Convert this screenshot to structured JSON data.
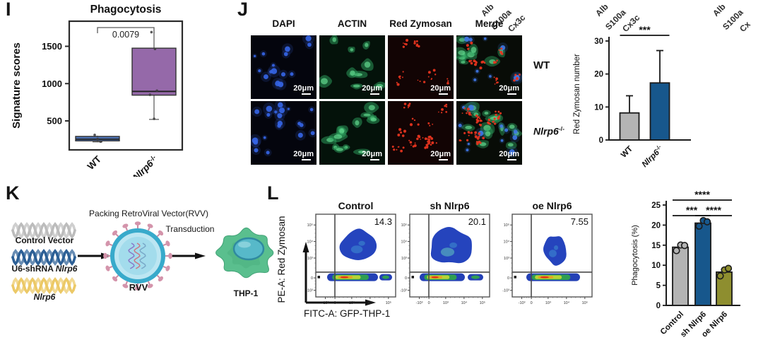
{
  "figure": {
    "panel_labels": {
      "I": "I",
      "J": "J",
      "K": "K",
      "L": "L"
    }
  },
  "top_cut_labels": {
    "clusters": [
      [
        "Alb",
        "S100a",
        "Cx3c"
      ],
      [
        "Alb",
        "S100a",
        "Cx3c"
      ],
      [
        "Alb",
        "S100a",
        "Cx"
      ]
    ]
  },
  "panel_J": {
    "column_headers": [
      "DAPI",
      "ACTIN",
      "Red Zymosan",
      "Merge"
    ],
    "row_labels": [
      "WT",
      "Nlrp6-/-"
    ],
    "scale_bar_label": "20μm",
    "channel_colors": {
      "DAPI": "#3565e8",
      "ACTIN": "#2da45f",
      "Red Zymosan": "#e6341f"
    }
  },
  "panel_K": {
    "top_caption": "Packing RetroViral Vector(RVV)",
    "transduction_label": "Transduction",
    "vectors": [
      {
        "name": "Control Vector",
        "color": "#bcbcbc"
      },
      {
        "name": "U6-shRNA Nlrp6",
        "color": "#2d6096"
      },
      {
        "name": "Nlrp6",
        "color": "#ecc967"
      }
    ],
    "virus_label": "RVV",
    "cell_label": "THP-1"
  },
  "panel_L": {
    "xlabel": "FITC-A: GFP-THP-1",
    "ylabel": "PE-A: Red Zymosan"
  },
  "chart_data": [
    {
      "id": "signature_boxplot",
      "type": "box",
      "title": "Phagocytosis",
      "ylabel": "Signature scores",
      "p_value": "0.0079",
      "yticks": [
        500,
        1000,
        1500
      ],
      "ylim": [
        150,
        1900
      ],
      "categories": [
        "WT",
        "Nlrp6-/-"
      ],
      "boxes": [
        {
          "category": "WT",
          "color": "#4d72b3",
          "whisker_low": 218,
          "q1": 232,
          "median": 255,
          "q3": 292,
          "whisker_high": 302,
          "points": [
            312,
            258,
            222
          ]
        },
        {
          "category": "Nlrp6-/-",
          "color": "#9569a9",
          "whisker_low": 520,
          "q1": 845,
          "median": 895,
          "q3": 1475,
          "whisker_high": 1690,
          "points": [
            1690,
            1465,
            905,
            850,
            528
          ]
        }
      ]
    },
    {
      "id": "red_zymosan_bar",
      "type": "bar",
      "ylabel": "Red Zymosan number",
      "categories": [
        "WT",
        "Nlrp6-/-"
      ],
      "values": [
        8.2,
        17.3
      ],
      "errors_up": [
        5.2,
        9.8
      ],
      "bar_colors": [
        "#b4b4b4",
        "#17578c"
      ],
      "yticks": [
        0,
        10,
        20,
        30
      ],
      "ylim": [
        0,
        30
      ],
      "significance": [
        {
          "from": 0,
          "to": 1,
          "label": "***"
        }
      ]
    },
    {
      "id": "flow_cytometry",
      "type": "scatter",
      "xlabel": "FITC-A: GFP-THP-1",
      "ylabel": "PE-A: Red Zymosan",
      "xticks": [
        "-10³",
        "0",
        "10³",
        "10⁴",
        "10⁵"
      ],
      "yticks": [
        "10⁵",
        "10⁴",
        "10³",
        "0",
        "-10³"
      ],
      "plots": [
        {
          "title": "Control",
          "gate_value": "14.3"
        },
        {
          "title": "sh Nlrp6",
          "gate_value": "20.1"
        },
        {
          "title": "oe Nlrp6",
          "gate_value": "7.55"
        }
      ]
    },
    {
      "id": "phagocytosis_bar",
      "type": "bar",
      "ylabel": "Phagocytosis (%)",
      "categories": [
        "Control",
        "sh Nlrp6",
        "oe Nlrp6"
      ],
      "values": [
        14.5,
        20.5,
        8.3
      ],
      "points": [
        [
          14.0,
          14.6,
          15.1
        ],
        [
          20.1,
          20.7,
          21.0
        ],
        [
          7.7,
          8.4,
          9.4
        ]
      ],
      "bar_colors": [
        "#b4b4b4",
        "#17578c",
        "#8e8e2f"
      ],
      "yticks": [
        0,
        5,
        10,
        15,
        20,
        25
      ],
      "ylim": [
        0,
        25
      ],
      "significance": [
        {
          "from": 0,
          "to": 1,
          "label": "***"
        },
        {
          "from": 1,
          "to": 2,
          "label": "****"
        },
        {
          "from": 0,
          "to": 2,
          "label": "****"
        }
      ]
    }
  ]
}
